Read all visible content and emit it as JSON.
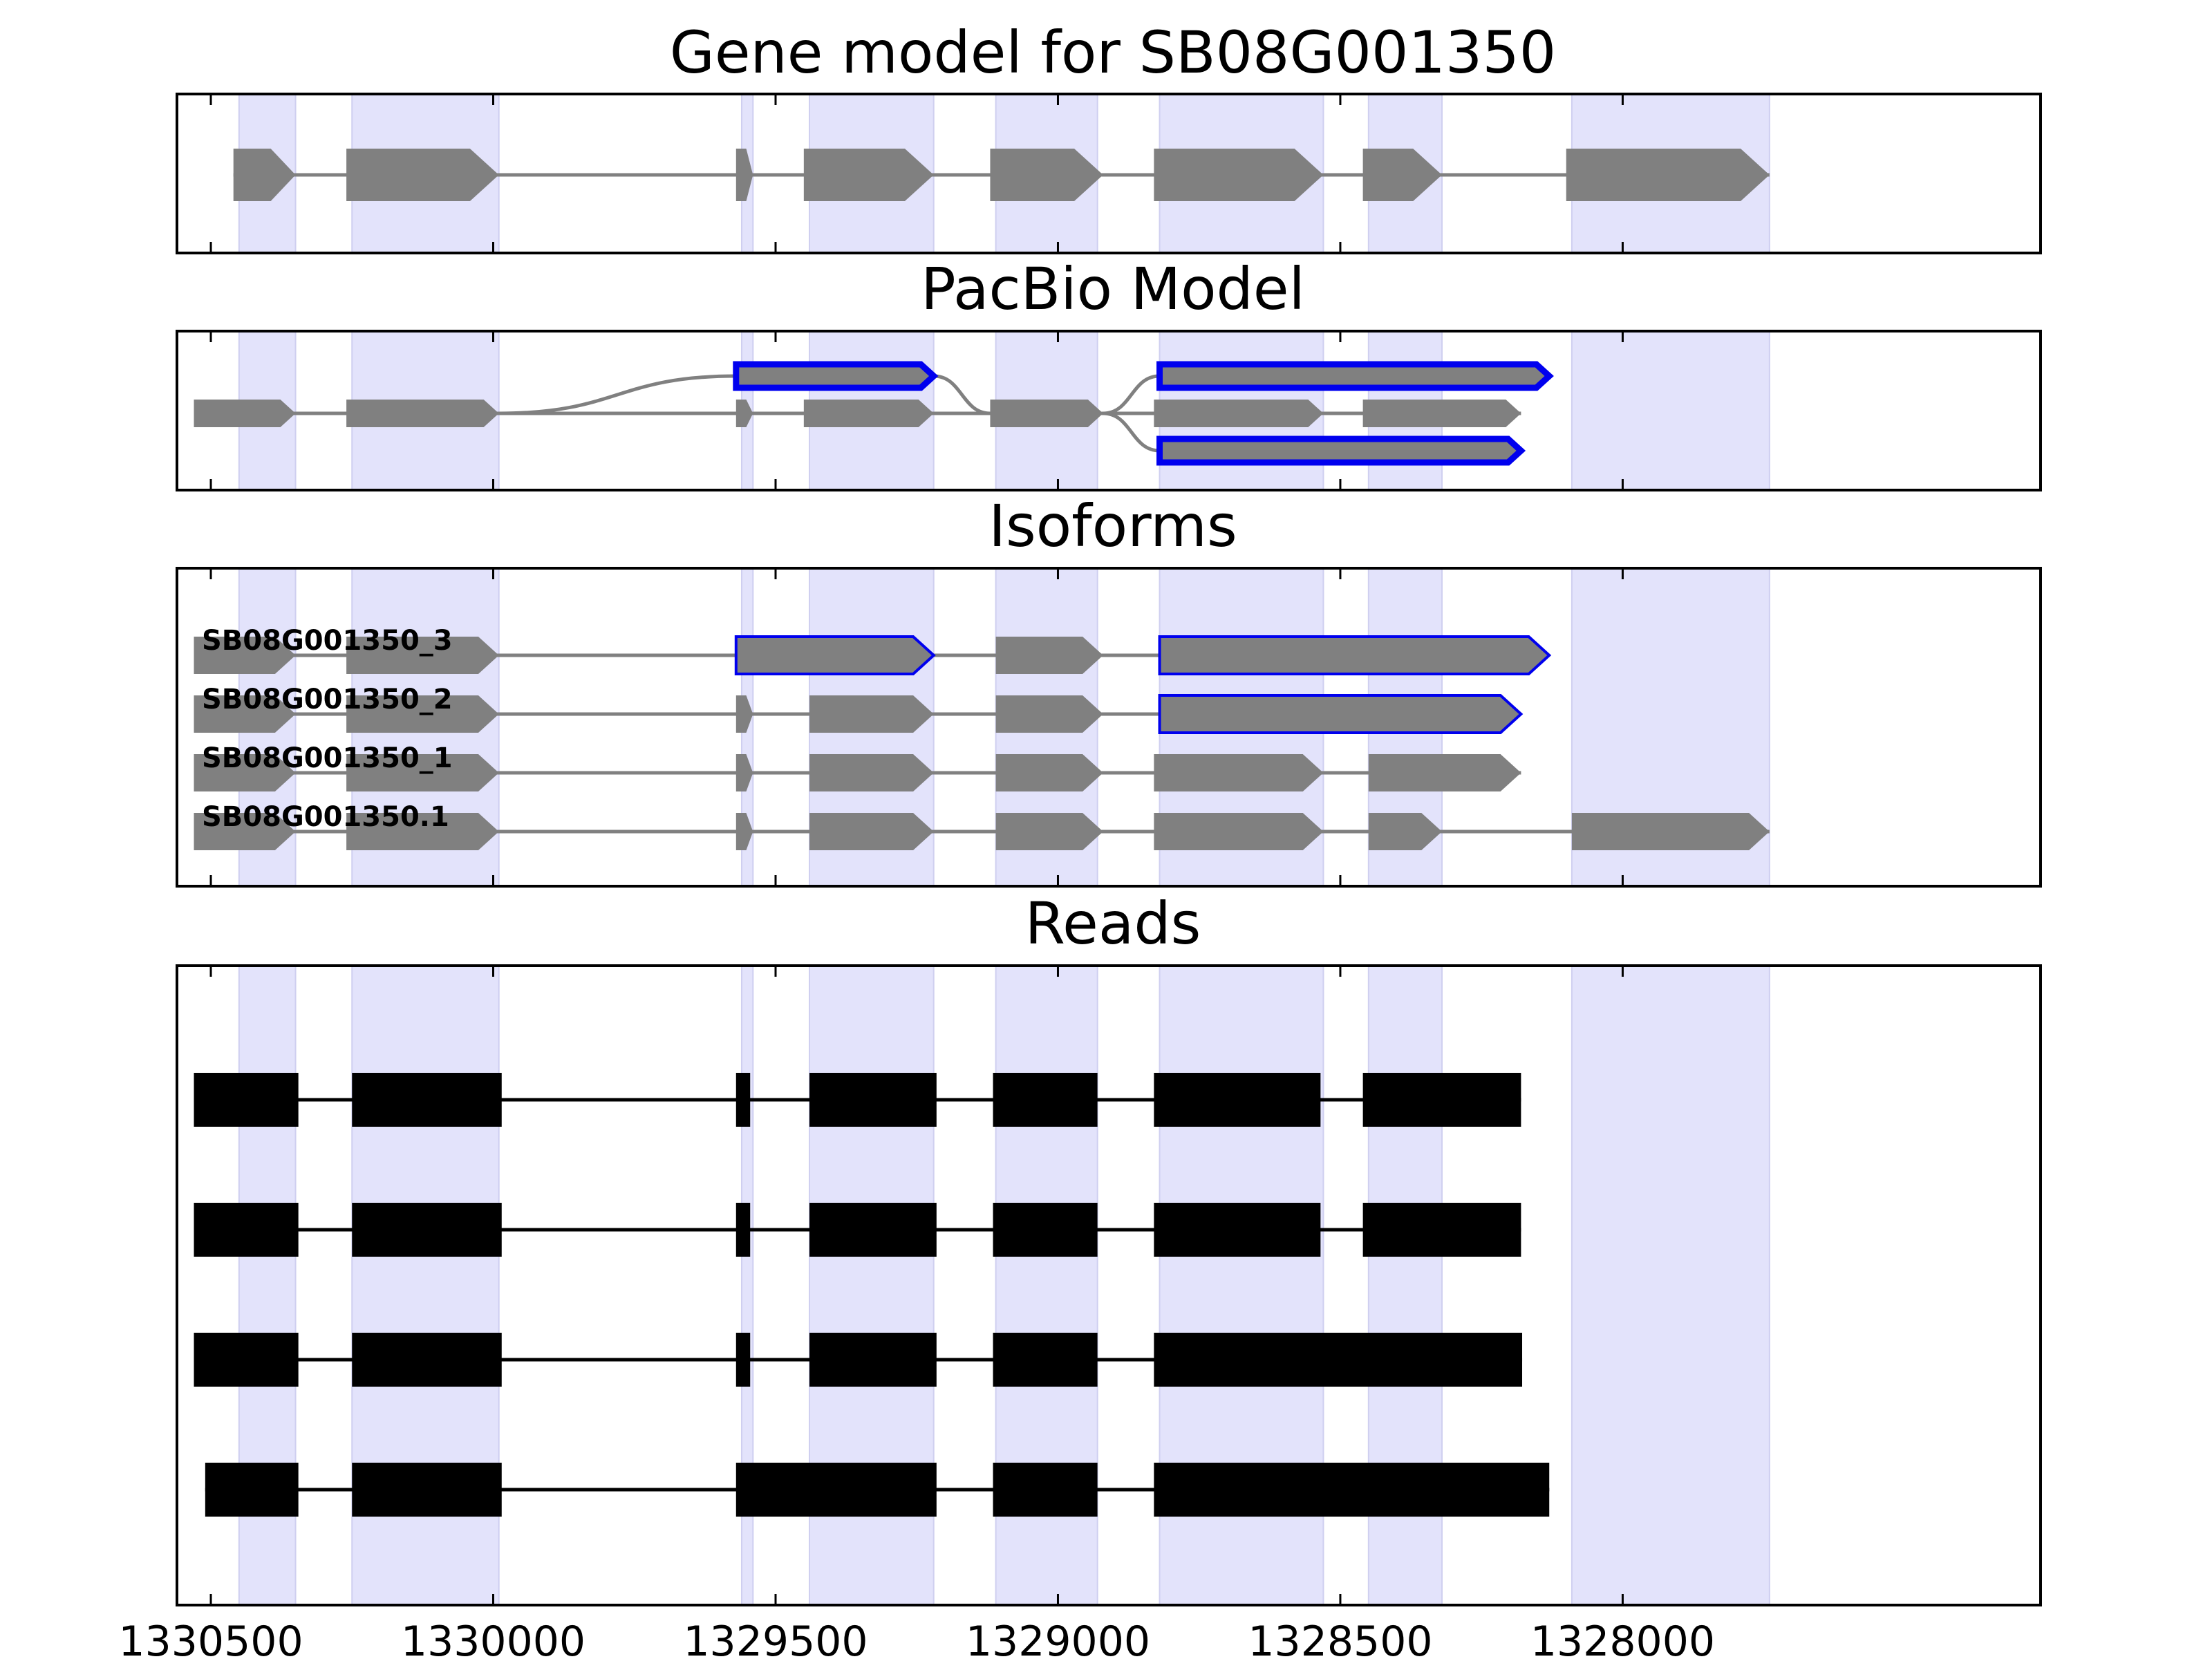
{
  "figure": {
    "panels": [
      {
        "id": "gene",
        "title": "Gene model for SB08G001350"
      },
      {
        "id": "pacbio",
        "title": "PacBio Model"
      },
      {
        "id": "isoforms",
        "title": "Isoforms"
      },
      {
        "id": "reads",
        "title": "Reads"
      }
    ],
    "x_axis": {
      "reversed": true,
      "range": [
        1330560,
        1327260
      ],
      "ticks": [
        {
          "value": 1330500,
          "label": "1330500"
        },
        {
          "value": 1330000,
          "label": "1330000"
        },
        {
          "value": 1329500,
          "label": "1329500"
        },
        {
          "value": 1329000,
          "label": "1329000"
        },
        {
          "value": 1328500,
          "label": "1328500"
        },
        {
          "value": 1328000,
          "label": "1328000"
        }
      ]
    },
    "colors": {
      "exon_fill": "#808080",
      "intron_line": "#808080",
      "highlight_edge": "#0000ee",
      "shading": "#e3e3fb",
      "read_fill": "#000000"
    },
    "shaded_exons": [
      [
        1330450,
        1330350
      ],
      [
        1330250,
        1329990
      ],
      [
        1329560,
        1329540
      ],
      [
        1329440,
        1329220
      ],
      [
        1329110,
        1328930
      ],
      [
        1328820,
        1328530
      ],
      [
        1328450,
        1328320
      ],
      [
        1328090,
        1327740
      ]
    ],
    "gene_model": {
      "exons": [
        [
          1330460,
          1330350
        ],
        [
          1330260,
          1329990
        ],
        [
          1329570,
          1329540
        ],
        [
          1329450,
          1329220
        ],
        [
          1329120,
          1328920
        ],
        [
          1328830,
          1328530
        ],
        [
          1328460,
          1328320
        ],
        [
          1328100,
          1327740
        ]
      ]
    },
    "pacbio_model": {
      "main_exons": [
        [
          1330530,
          1330350
        ],
        [
          1330260,
          1329990
        ],
        [
          1329570,
          1329540
        ],
        [
          1329450,
          1329220
        ],
        [
          1329120,
          1328920
        ],
        [
          1328830,
          1328530
        ],
        [
          1328460,
          1328180
        ]
      ],
      "alt_exons": [
        {
          "exon": [
            1329570,
            1329220
          ],
          "lane": 0
        },
        {
          "exon": [
            1328820,
            1328130
          ],
          "lane": 0
        },
        {
          "exon": [
            1328820,
            1328180
          ],
          "lane": 2
        }
      ]
    },
    "isoforms": [
      {
        "label": "SB08G001350_3",
        "exons": [
          [
            1330530,
            1330350
          ],
          [
            1330260,
            1329990
          ],
          [
            1329570,
            1329220
          ],
          [
            1329110,
            1328920
          ],
          [
            1328820,
            1328130
          ]
        ],
        "highlight": [
          2,
          4
        ]
      },
      {
        "label": "SB08G001350_2",
        "exons": [
          [
            1330530,
            1330350
          ],
          [
            1330260,
            1329990
          ],
          [
            1329570,
            1329540
          ],
          [
            1329440,
            1329220
          ],
          [
            1329110,
            1328920
          ],
          [
            1328820,
            1328180
          ]
        ],
        "highlight": [
          5
        ]
      },
      {
        "label": "SB08G001350_1",
        "exons": [
          [
            1330530,
            1330350
          ],
          [
            1330260,
            1329990
          ],
          [
            1329570,
            1329540
          ],
          [
            1329440,
            1329220
          ],
          [
            1329110,
            1328920
          ],
          [
            1328830,
            1328530
          ],
          [
            1328450,
            1328180
          ]
        ],
        "highlight": []
      },
      {
        "label": "SB08G001350.1",
        "exons": [
          [
            1330530,
            1330350
          ],
          [
            1330260,
            1329990
          ],
          [
            1329570,
            1329540
          ],
          [
            1329440,
            1329220
          ],
          [
            1329110,
            1328920
          ],
          [
            1328830,
            1328530
          ],
          [
            1328450,
            1328320
          ],
          [
            1328090,
            1327740
          ]
        ],
        "highlight": []
      }
    ],
    "reads": [
      {
        "exons": [
          [
            1330530,
            1330345
          ],
          [
            1330250,
            1329985
          ],
          [
            1329570,
            1329545
          ],
          [
            1329440,
            1329215
          ],
          [
            1329115,
            1328930
          ],
          [
            1328830,
            1328535
          ],
          [
            1328460,
            1328180
          ]
        ]
      },
      {
        "exons": [
          [
            1330530,
            1330345
          ],
          [
            1330250,
            1329985
          ],
          [
            1329570,
            1329545
          ],
          [
            1329440,
            1329215
          ],
          [
            1329115,
            1328930
          ],
          [
            1328830,
            1328535
          ],
          [
            1328460,
            1328180
          ]
        ]
      },
      {
        "exons": [
          [
            1330530,
            1330345
          ],
          [
            1330250,
            1329985
          ],
          [
            1329570,
            1329545
          ],
          [
            1329440,
            1329215
          ],
          [
            1329115,
            1328930
          ],
          [
            1328830,
            1328178
          ]
        ]
      },
      {
        "exons": [
          [
            1330510,
            1330345
          ],
          [
            1330250,
            1329985
          ],
          [
            1329570,
            1329215
          ],
          [
            1329115,
            1328930
          ],
          [
            1328830,
            1328130
          ]
        ]
      }
    ]
  }
}
